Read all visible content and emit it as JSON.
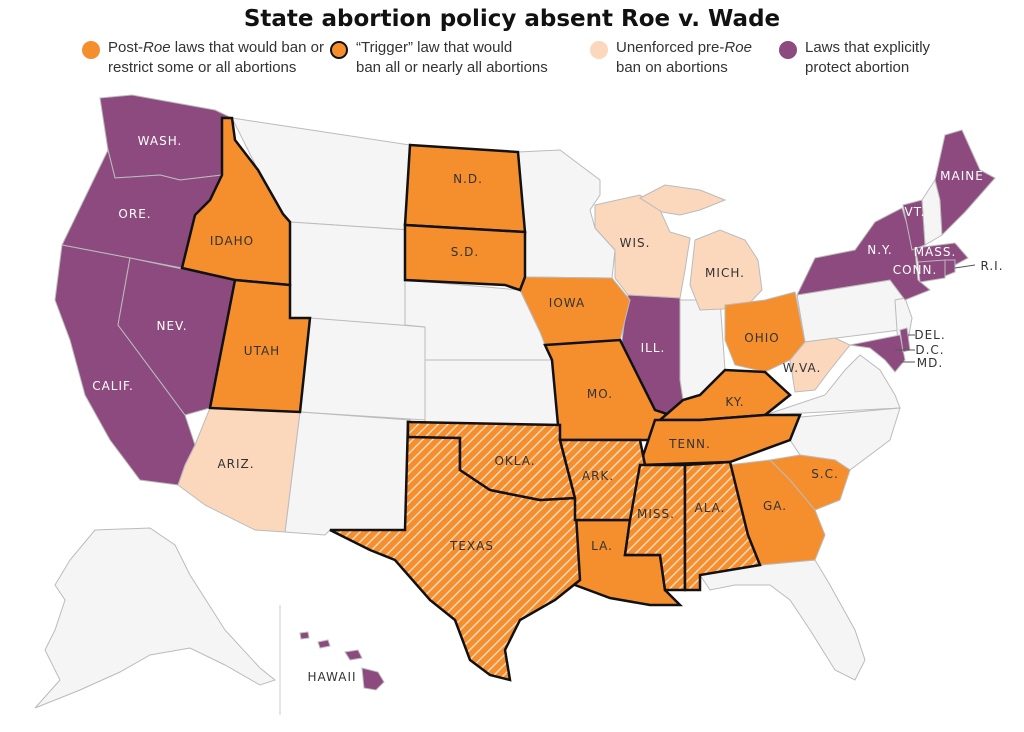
{
  "title": "State abortion policy absent Roe v. Wade",
  "legend": [
    {
      "pre": "Post-",
      "em": "Roe",
      "post": " laws that would ban or",
      "line2": "restrict some or all abortions",
      "color": "#f58f2e",
      "outlined": false
    },
    {
      "pre": "“Trigger” law that would",
      "em": "",
      "post": "",
      "line2": "ban all or nearly all abortions",
      "color": "#f58f2e",
      "outlined": true
    },
    {
      "pre": "Unenforced pre-",
      "em": "Roe",
      "post": "",
      "line2": "ban on abortions",
      "color": "#fbd7bc",
      "outlined": false
    },
    {
      "pre": "Laws that explicitly",
      "em": "",
      "post": "",
      "line2": "protect abortion",
      "color": "#8c4a7f",
      "outlined": false
    }
  ],
  "colors": {
    "ban": "#f58f2e",
    "pre_roe": "#fbd7bc",
    "protect": "#8c4a7f",
    "none": "#f5f5f5"
  },
  "labels": {
    "wash": "WASH.",
    "ore": "ORE.",
    "calif": "CALIF.",
    "nev": "NEV.",
    "idaho": "IDAHO",
    "utah": "UTAH",
    "ariz": "ARIZ.",
    "nd": "N.D.",
    "sd": "S.D.",
    "texas": "TEXAS",
    "okla": "OKLA.",
    "iowa": "IOWA",
    "mo": "MO.",
    "ark": "ARK.",
    "la": "LA.",
    "miss": "MISS.",
    "ala": "ALA.",
    "wis": "WIS.",
    "mich": "MICH.",
    "ill": "ILL.",
    "ohio": "OHIO",
    "ky": "KY.",
    "tenn": "TENN.",
    "ga": "GA.",
    "sc": "S.C.",
    "wva": "W.VA.",
    "ny": "N.Y.",
    "vt": "VT.",
    "maine": "MAINE",
    "mass": "MASS.",
    "conn": "CONN.",
    "ri": "R.I.",
    "del": "DEL.",
    "dc": "D.C.",
    "md": "MD.",
    "hawaii": "HAWAII"
  }
}
